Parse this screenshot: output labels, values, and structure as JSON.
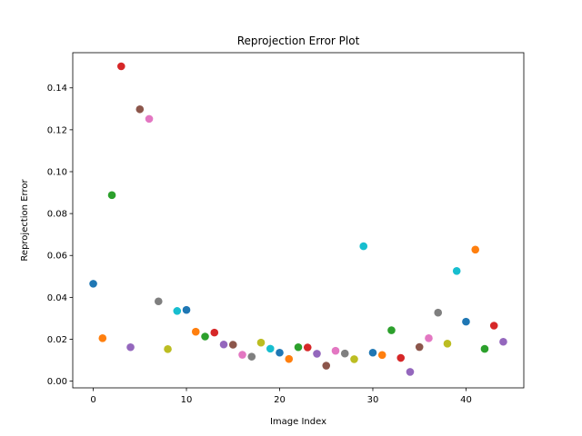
{
  "chart_data": {
    "type": "scatter",
    "title": "Reprojection Error Plot",
    "xlabel": "Image Index",
    "ylabel": "Reprojection Error",
    "xlim": [
      -2.2,
      46.2
    ],
    "ylim": [
      -0.0032,
      0.1568
    ],
    "xticks": [
      0,
      10,
      20,
      30,
      40
    ],
    "yticks": [
      0.0,
      0.02,
      0.04,
      0.06,
      0.08,
      0.1,
      0.12,
      0.14
    ],
    "ytick_labels": [
      "0.00",
      "0.02",
      "0.04",
      "0.06",
      "0.08",
      "0.10",
      "0.12",
      "0.14"
    ],
    "grid": false,
    "x": [
      0,
      1,
      2,
      3,
      4,
      5,
      6,
      7,
      8,
      9,
      10,
      11,
      12,
      13,
      14,
      15,
      16,
      17,
      18,
      19,
      20,
      21,
      22,
      23,
      24,
      25,
      26,
      27,
      28,
      29,
      30,
      31,
      32,
      33,
      34,
      35,
      36,
      37,
      38,
      39,
      40,
      41,
      42,
      43,
      44
    ],
    "y": [
      0.0465,
      0.0205,
      0.0888,
      0.1503,
      0.0162,
      0.1298,
      0.1252,
      0.0381,
      0.0153,
      0.0335,
      0.034,
      0.0236,
      0.0213,
      0.0232,
      0.0175,
      0.0174,
      0.0126,
      0.0117,
      0.0184,
      0.0155,
      0.0136,
      0.0106,
      0.0162,
      0.0161,
      0.0131,
      0.0074,
      0.0145,
      0.0132,
      0.0105,
      0.0644,
      0.0136,
      0.0125,
      0.0243,
      0.0111,
      0.0044,
      0.0163,
      0.0205,
      0.0327,
      0.0179,
      0.0526,
      0.0284,
      0.0628,
      0.0154,
      0.0265,
      0.0188
    ],
    "colors": [
      "#1f77b4",
      "#ff7f0e",
      "#2ca02c",
      "#d62728",
      "#9467bd",
      "#8c564b",
      "#e377c2",
      "#7f7f7f",
      "#bcbd22",
      "#17becf"
    ]
  }
}
